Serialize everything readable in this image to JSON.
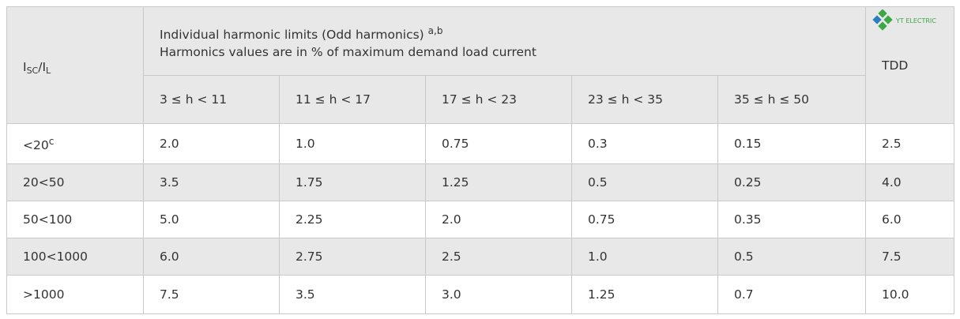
{
  "logo": "YT ELECTRIC",
  "table": {
    "header": {
      "ratio": {
        "main": "I",
        "sub": "SC",
        "mid": "/I",
        "sub2": "L"
      },
      "group_title": "Individual harmonic limits (Odd harmonics)",
      "group_title_sup": "a,b",
      "group_subtitle": "Harmonics values are in % of maximum demand load current",
      "columns": [
        "3 ≤ h < 11",
        "11 ≤ h < 17",
        "17 ≤ h < 23",
        "23 ≤ h < 35",
        "35 ≤ h ≤ 50"
      ],
      "tdd": "TDD"
    },
    "rows": [
      {
        "label": "<20",
        "label_sup": "c",
        "cells": [
          "2.0",
          "1.0",
          "0.75",
          "0.3",
          "0.15",
          "2.5"
        ]
      },
      {
        "label": "20<50",
        "cells": [
          "3.5",
          "1.75",
          "1.25",
          "0.5",
          "0.25",
          "4.0"
        ]
      },
      {
        "label": "50<100",
        "cells": [
          "5.0",
          "2.25",
          "2.0",
          "0.75",
          "0.35",
          "6.0"
        ]
      },
      {
        "label": "100<1000",
        "cells": [
          "6.0",
          "2.75",
          "2.5",
          "1.0",
          "0.5",
          "7.5"
        ]
      },
      {
        "label": ">1000",
        "cells": [
          "7.5",
          "3.5",
          "3.0",
          "1.25",
          "0.7",
          "10.0"
        ]
      }
    ]
  }
}
